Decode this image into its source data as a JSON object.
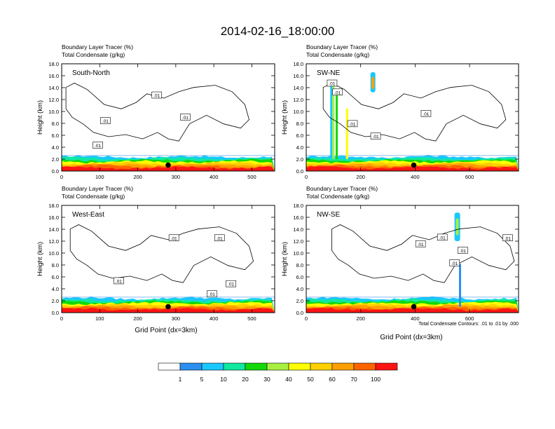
{
  "title": "2014-02-16_18:00:00",
  "panel_header": {
    "line1_label": "Boundary Layer Tracer",
    "line1_unit": "(%)",
    "line2_label": "Total Condensate",
    "line2_unit": "(g/kg)"
  },
  "shared_ylabel": "Height (km)",
  "shared_xlabel": "Grid Point (dx=3km)",
  "contour_note": "Total Condensate Contours: .01 to .01 by .000",
  "colorbar": {
    "colors": [
      "#ffffff",
      "#2c8ff0",
      "#19c8ff",
      "#0fe8a0",
      "#14d80a",
      "#a8f040",
      "#ffff00",
      "#ffd000",
      "#ffa000",
      "#ff6400",
      "#ff1414"
    ],
    "labels": [
      "1",
      "5",
      "10",
      "20",
      "30",
      "40",
      "50",
      "60",
      "70",
      "100"
    ]
  },
  "chart_data": [
    {
      "type": "heatmap",
      "name": "South-North",
      "xlim": [
        0,
        560
      ],
      "ylim": [
        0,
        18
      ],
      "xticks": [
        0,
        100,
        200,
        300,
        400,
        500
      ],
      "yticks": [
        "0.0",
        "2.0",
        "4.0",
        "6.0",
        "8.0",
        "10.0",
        "12.0",
        "14.0",
        "16.0",
        "18.0"
      ],
      "contour_labels": [
        {
          "x": 250,
          "y": 12.7,
          "text": ".01"
        },
        {
          "x": 115,
          "y": 8.4,
          "text": ".01"
        },
        {
          "x": 325,
          "y": 9.0,
          "text": ".01"
        },
        {
          "x": 95,
          "y": 4.3,
          "text": ".01"
        }
      ],
      "marker": {
        "x": 280,
        "y": 1.0
      }
    },
    {
      "type": "heatmap",
      "name": "SW-NE",
      "xlim": [
        0,
        780
      ],
      "ylim": [
        0,
        18
      ],
      "xticks": [
        0,
        200,
        400,
        600
      ],
      "yticks": [
        "0.0",
        "2.0",
        "4.0",
        "6.0",
        "8.0",
        "10.0",
        "12.0",
        "14.0",
        "16.0",
        "18.0"
      ],
      "contour_labels": [
        {
          "x": 95,
          "y": 14.7,
          "text": ".01"
        },
        {
          "x": 115,
          "y": 13.2,
          "text": ".01"
        },
        {
          "x": 170,
          "y": 7.9,
          "text": ".01"
        },
        {
          "x": 255,
          "y": 5.8,
          "text": ".01"
        },
        {
          "x": 440,
          "y": 9.6,
          "text": ".01"
        }
      ],
      "marker": {
        "x": 395,
        "y": 1.0
      }
    },
    {
      "type": "heatmap",
      "name": "West-East",
      "xlim": [
        0,
        560
      ],
      "ylim": [
        0,
        18
      ],
      "xticks": [
        0,
        100,
        200,
        300,
        400,
        500
      ],
      "yticks": [
        "0.0",
        "2.0",
        "4.0",
        "6.0",
        "8.0",
        "10.0",
        "12.0",
        "14.0",
        "16.0",
        "18.0"
      ],
      "contour_labels": [
        {
          "x": 295,
          "y": 12.5,
          "text": ".01"
        },
        {
          "x": 415,
          "y": 12.5,
          "text": ".01"
        },
        {
          "x": 150,
          "y": 5.3,
          "text": ".01"
        },
        {
          "x": 445,
          "y": 4.8,
          "text": ".01"
        },
        {
          "x": 395,
          "y": 3.1,
          "text": ".01"
        }
      ],
      "marker": {
        "x": 280,
        "y": 1.0
      }
    },
    {
      "type": "heatmap",
      "name": "NW-SE",
      "xlim": [
        0,
        780
      ],
      "ylim": [
        0,
        18
      ],
      "xticks": [
        0,
        200,
        400,
        600
      ],
      "yticks": [
        "0.0",
        "2.0",
        "4.0",
        "6.0",
        "8.0",
        "10.0",
        "12.0",
        "14.0",
        "16.0",
        "18.0"
      ],
      "contour_labels": [
        {
          "x": 420,
          "y": 11.5,
          "text": ".01"
        },
        {
          "x": 500,
          "y": 12.6,
          "text": ".01"
        },
        {
          "x": 575,
          "y": 10.4,
          "text": ".01"
        },
        {
          "x": 545,
          "y": 8.3,
          "text": ".01"
        },
        {
          "x": 740,
          "y": 12.5,
          "text": ".01"
        }
      ],
      "marker": {
        "x": 395,
        "y": 1.0
      }
    }
  ]
}
